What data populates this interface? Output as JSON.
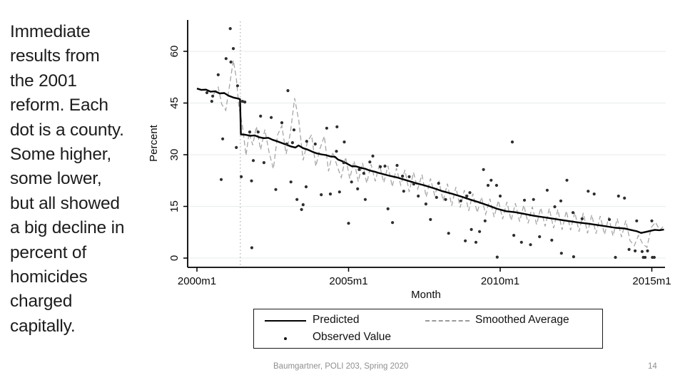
{
  "slide": {
    "body_lines": [
      "Immediate",
      "results from",
      "the 2001",
      "reform. Each",
      "dot is a county.",
      "Some higher,",
      "some lower,",
      "but all showed",
      "a big decline in",
      "percent of",
      "homicides",
      "charged",
      "capitally."
    ],
    "footer": "Baumgartner, POLI 203, Spring 2020",
    "page_number": "14"
  },
  "chart_data": {
    "type": "line+scatter",
    "title": "",
    "xlabel": "Month",
    "ylabel": "Percent",
    "x_ticks": [
      {
        "t": 2000,
        "label": "2000m1"
      },
      {
        "t": 2005,
        "label": "2005m1"
      },
      {
        "t": 2010,
        "label": "2010m1"
      },
      {
        "t": 2015,
        "label": "2015m1"
      }
    ],
    "y_ticks": [
      0,
      15,
      30,
      45,
      60
    ],
    "ylim": [
      0,
      69
    ],
    "xlim": [
      1999.7,
      2015.6
    ],
    "grid": true,
    "reform_line_t": 2001.43,
    "legend": {
      "predicted": "Predicted",
      "observed": "Observed Value",
      "smoothed": "Smoothed Average"
    },
    "colors": {
      "predicted": "#000000",
      "smoothed": "#a6a6a6",
      "observed": "#2e2e2e",
      "grid": "#eceeee",
      "reform": "#b3b3b3",
      "axis": "#000000"
    },
    "series": {
      "predicted": [
        [
          2000.0,
          49.2
        ],
        [
          2000.15,
          48.8
        ],
        [
          2000.3,
          48.9
        ],
        [
          2000.45,
          48.3
        ],
        [
          2000.6,
          48.4
        ],
        [
          2000.75,
          47.8
        ],
        [
          2000.9,
          47.9
        ],
        [
          2001.05,
          47.1
        ],
        [
          2001.2,
          46.6
        ],
        [
          2001.35,
          46.3
        ],
        [
          2001.42,
          46.1
        ],
        [
          2001.45,
          35.9
        ],
        [
          2001.6,
          35.8
        ],
        [
          2001.75,
          35.5
        ],
        [
          2001.9,
          35.6
        ],
        [
          2002.05,
          35.1
        ],
        [
          2002.2,
          34.8
        ],
        [
          2002.35,
          34.9
        ],
        [
          2002.5,
          34.3
        ],
        [
          2002.65,
          33.9
        ],
        [
          2002.8,
          33.4
        ],
        [
          2002.95,
          32.9
        ],
        [
          2003.1,
          32.4
        ],
        [
          2003.25,
          32.1
        ],
        [
          2003.35,
          32.7
        ],
        [
          2003.5,
          31.9
        ],
        [
          2003.65,
          31.5
        ],
        [
          2003.8,
          30.9
        ],
        [
          2003.95,
          30.4
        ],
        [
          2004.1,
          30.1
        ],
        [
          2004.25,
          29.9
        ],
        [
          2004.4,
          29.5
        ],
        [
          2004.55,
          29.4
        ],
        [
          2004.65,
          28.6
        ],
        [
          2004.8,
          28.1
        ],
        [
          2004.95,
          27.4
        ],
        [
          2005.1,
          26.7
        ],
        [
          2005.25,
          26.6
        ],
        [
          2005.4,
          26.2
        ],
        [
          2005.55,
          25.9
        ],
        [
          2005.7,
          25.4
        ],
        [
          2005.85,
          25.1
        ],
        [
          2006.0,
          24.7
        ],
        [
          2006.3,
          24.0
        ],
        [
          2006.6,
          23.4
        ],
        [
          2006.9,
          22.6
        ],
        [
          2007.2,
          21.8
        ],
        [
          2007.5,
          21.1
        ],
        [
          2007.8,
          20.3
        ],
        [
          2008.1,
          19.4
        ],
        [
          2008.4,
          18.7
        ],
        [
          2008.7,
          17.9
        ],
        [
          2009.0,
          17.0
        ],
        [
          2009.3,
          16.2
        ],
        [
          2009.6,
          15.3
        ],
        [
          2009.9,
          14.3
        ],
        [
          2010.2,
          13.6
        ],
        [
          2010.5,
          13.3
        ],
        [
          2010.8,
          12.8
        ],
        [
          2011.1,
          12.3
        ],
        [
          2011.4,
          11.9
        ],
        [
          2011.7,
          11.5
        ],
        [
          2012.0,
          11.1
        ],
        [
          2012.3,
          10.7
        ],
        [
          2012.6,
          10.3
        ],
        [
          2012.9,
          10.0
        ],
        [
          2013.2,
          9.6
        ],
        [
          2013.5,
          9.2
        ],
        [
          2013.8,
          8.8
        ],
        [
          2014.1,
          8.6
        ],
        [
          2014.3,
          8.2
        ],
        [
          2014.5,
          7.8
        ],
        [
          2014.65,
          7.3
        ],
        [
          2014.8,
          7.6
        ],
        [
          2014.95,
          7.9
        ],
        [
          2015.1,
          8.2
        ],
        [
          2015.25,
          8.1
        ],
        [
          2015.4,
          8.3
        ]
      ],
      "smoothed": [
        [
          2000.55,
          47.5
        ],
        [
          2000.7,
          49.6
        ],
        [
          2000.82,
          44.6
        ],
        [
          2000.95,
          42.9
        ],
        [
          2001.08,
          50.4
        ],
        [
          2001.2,
          57.4
        ],
        [
          2001.3,
          52.2
        ],
        [
          2001.38,
          44.2
        ],
        [
          2001.5,
          38.3
        ],
        [
          2001.62,
          29.8
        ],
        [
          2001.72,
          36.4
        ],
        [
          2001.84,
          32.8
        ],
        [
          2001.96,
          38.2
        ],
        [
          2002.1,
          31.4
        ],
        [
          2002.24,
          37.3
        ],
        [
          2002.38,
          30.6
        ],
        [
          2002.52,
          25.9
        ],
        [
          2002.66,
          35.8
        ],
        [
          2002.8,
          38.4
        ],
        [
          2002.94,
          30.2
        ],
        [
          2003.08,
          36.3
        ],
        [
          2003.22,
          46.4
        ],
        [
          2003.36,
          39.8
        ],
        [
          2003.5,
          28.4
        ],
        [
          2003.64,
          33.6
        ],
        [
          2003.78,
          35.8
        ],
        [
          2003.92,
          26.6
        ],
        [
          2004.06,
          31.8
        ],
        [
          2004.2,
          35.4
        ],
        [
          2004.34,
          25.2
        ],
        [
          2004.48,
          30.8
        ],
        [
          2004.62,
          26.8
        ],
        [
          2004.76,
          23.4
        ],
        [
          2004.9,
          29.3
        ],
        [
          2005.04,
          23.1
        ],
        [
          2005.18,
          28.2
        ],
        [
          2005.32,
          22.2
        ],
        [
          2005.46,
          27.6
        ],
        [
          2005.6,
          21.7
        ],
        [
          2005.74,
          27.2
        ],
        [
          2005.88,
          22.3
        ],
        [
          2006.02,
          27.1
        ],
        [
          2006.16,
          21.9
        ],
        [
          2006.3,
          26.8
        ],
        [
          2006.44,
          20.7
        ],
        [
          2006.58,
          26.1
        ],
        [
          2006.72,
          21.2
        ],
        [
          2006.86,
          25.6
        ],
        [
          2007.0,
          19.2
        ],
        [
          2007.14,
          24.9
        ],
        [
          2007.28,
          20.1
        ],
        [
          2007.42,
          24.2
        ],
        [
          2007.56,
          17.7
        ],
        [
          2007.7,
          23.1
        ],
        [
          2007.84,
          18.2
        ],
        [
          2007.98,
          22.2
        ],
        [
          2008.12,
          16.6
        ],
        [
          2008.26,
          21.6
        ],
        [
          2008.4,
          15.2
        ],
        [
          2008.54,
          20.6
        ],
        [
          2008.68,
          14.7
        ],
        [
          2008.82,
          19.7
        ],
        [
          2008.96,
          13.7
        ],
        [
          2009.1,
          18.7
        ],
        [
          2009.24,
          13.2
        ],
        [
          2009.38,
          17.7
        ],
        [
          2009.52,
          12.7
        ],
        [
          2009.66,
          17.2
        ],
        [
          2009.8,
          11.9
        ],
        [
          2009.94,
          16.7
        ],
        [
          2010.08,
          11.3
        ],
        [
          2010.22,
          16.3
        ],
        [
          2010.36,
          10.9
        ],
        [
          2010.5,
          15.9
        ],
        [
          2010.64,
          10.6
        ],
        [
          2010.78,
          15.4
        ],
        [
          2010.92,
          10.1
        ],
        [
          2011.06,
          14.9
        ],
        [
          2011.2,
          9.7
        ],
        [
          2011.34,
          14.6
        ],
        [
          2011.48,
          9.2
        ],
        [
          2011.62,
          14.4
        ],
        [
          2011.76,
          8.7
        ],
        [
          2011.9,
          14.1
        ],
        [
          2012.04,
          8.2
        ],
        [
          2012.18,
          13.7
        ],
        [
          2012.32,
          8.1
        ],
        [
          2012.46,
          13.3
        ],
        [
          2012.6,
          7.7
        ],
        [
          2012.74,
          13.1
        ],
        [
          2012.88,
          7.2
        ],
        [
          2013.02,
          12.6
        ],
        [
          2013.16,
          7.1
        ],
        [
          2013.3,
          12.2
        ],
        [
          2013.44,
          6.8
        ],
        [
          2013.58,
          11.9
        ],
        [
          2013.72,
          6.4
        ],
        [
          2013.86,
          11.5
        ],
        [
          2014.0,
          6.1
        ],
        [
          2014.14,
          10.9
        ],
        [
          2014.28,
          5.1
        ],
        [
          2014.42,
          3.6
        ],
        [
          2014.56,
          6.6
        ],
        [
          2014.7,
          4.1
        ],
        [
          2014.84,
          3.1
        ],
        [
          2014.98,
          8.9
        ],
        [
          2015.12,
          10.4
        ],
        [
          2015.26,
          8.1
        ],
        [
          2015.4,
          9.4
        ]
      ],
      "observed": [
        [
          2000.33,
          48.0
        ],
        [
          2000.49,
          45.5
        ],
        [
          2000.52,
          47.0
        ],
        [
          2000.7,
          53.2
        ],
        [
          2000.8,
          22.8
        ],
        [
          2000.85,
          34.6
        ],
        [
          2000.96,
          57.9
        ],
        [
          2001.1,
          66.6
        ],
        [
          2001.12,
          56.9
        ],
        [
          2001.2,
          60.8
        ],
        [
          2001.3,
          32.1
        ],
        [
          2001.34,
          50.0
        ],
        [
          2001.46,
          23.6
        ],
        [
          2001.5,
          45.5
        ],
        [
          2001.58,
          45.3
        ],
        [
          2001.74,
          36.6
        ],
        [
          2001.8,
          22.4
        ],
        [
          2001.81,
          3.0
        ],
        [
          2001.86,
          28.3
        ],
        [
          2002.02,
          36.6
        ],
        [
          2002.1,
          41.2
        ],
        [
          2002.21,
          27.7
        ],
        [
          2002.45,
          40.8
        ],
        [
          2002.6,
          19.9
        ],
        [
          2002.8,
          39.3
        ],
        [
          2002.96,
          33.1
        ],
        [
          2003.0,
          48.6
        ],
        [
          2003.1,
          22.1
        ],
        [
          2003.15,
          33.5
        ],
        [
          2003.2,
          37.2
        ],
        [
          2003.3,
          17.0
        ],
        [
          2003.45,
          14.1
        ],
        [
          2003.5,
          15.5
        ],
        [
          2003.6,
          20.7
        ],
        [
          2003.62,
          33.9
        ],
        [
          2003.9,
          33.1
        ],
        [
          2004.1,
          18.4
        ],
        [
          2004.28,
          37.7
        ],
        [
          2004.4,
          18.6
        ],
        [
          2004.6,
          31.0
        ],
        [
          2004.62,
          38.1
        ],
        [
          2004.7,
          19.2
        ],
        [
          2004.84,
          27.7
        ],
        [
          2004.86,
          33.7
        ],
        [
          2005.0,
          10.1
        ],
        [
          2005.1,
          22.1
        ],
        [
          2005.3,
          20.1
        ],
        [
          2005.35,
          25.7
        ],
        [
          2005.5,
          24.6
        ],
        [
          2005.55,
          17.0
        ],
        [
          2005.7,
          27.9
        ],
        [
          2005.8,
          29.6
        ],
        [
          2006.05,
          26.5
        ],
        [
          2006.2,
          26.7
        ],
        [
          2006.3,
          14.3
        ],
        [
          2006.45,
          10.3
        ],
        [
          2006.6,
          26.9
        ],
        [
          2006.78,
          23.8
        ],
        [
          2006.82,
          19.4
        ],
        [
          2007.0,
          23.6
        ],
        [
          2007.15,
          21.5
        ],
        [
          2007.3,
          18.0
        ],
        [
          2007.55,
          15.7
        ],
        [
          2007.7,
          11.2
        ],
        [
          2007.9,
          17.6
        ],
        [
          2007.97,
          21.7
        ],
        [
          2008.2,
          17.0
        ],
        [
          2008.3,
          7.2
        ],
        [
          2008.7,
          16.6
        ],
        [
          2008.85,
          5.0
        ],
        [
          2008.9,
          18.0
        ],
        [
          2009.0,
          19.0
        ],
        [
          2009.05,
          8.3
        ],
        [
          2009.2,
          4.6
        ],
        [
          2009.32,
          7.7
        ],
        [
          2009.45,
          25.7
        ],
        [
          2009.5,
          10.8
        ],
        [
          2009.6,
          21.1
        ],
        [
          2009.7,
          22.6
        ],
        [
          2009.88,
          21.1
        ],
        [
          2009.9,
          0.3
        ],
        [
          2010.0,
          18.0
        ],
        [
          2010.4,
          33.7
        ],
        [
          2010.45,
          6.6
        ],
        [
          2010.7,
          4.6
        ],
        [
          2010.8,
          16.8
        ],
        [
          2011.0,
          3.9
        ],
        [
          2011.1,
          17.0
        ],
        [
          2011.3,
          6.2
        ],
        [
          2011.55,
          19.7
        ],
        [
          2011.7,
          5.2
        ],
        [
          2011.8,
          14.9
        ],
        [
          2012.0,
          16.6
        ],
        [
          2012.02,
          1.4
        ],
        [
          2012.2,
          22.6
        ],
        [
          2012.4,
          13.2
        ],
        [
          2012.42,
          0.4
        ],
        [
          2012.7,
          11.4
        ],
        [
          2012.9,
          19.4
        ],
        [
          2013.1,
          18.6
        ],
        [
          2013.6,
          11.2
        ],
        [
          2013.8,
          0.2
        ],
        [
          2013.9,
          18.0
        ],
        [
          2014.1,
          17.4
        ],
        [
          2014.25,
          2.5
        ],
        [
          2014.45,
          2.1
        ],
        [
          2014.5,
          10.8
        ],
        [
          2014.68,
          1.9
        ],
        [
          2014.72,
          0.2
        ],
        [
          2014.78,
          0.2
        ],
        [
          2014.86,
          2.1
        ],
        [
          2015.0,
          10.8
        ],
        [
          2015.02,
          0.2
        ],
        [
          2015.08,
          0.2
        ]
      ]
    }
  }
}
